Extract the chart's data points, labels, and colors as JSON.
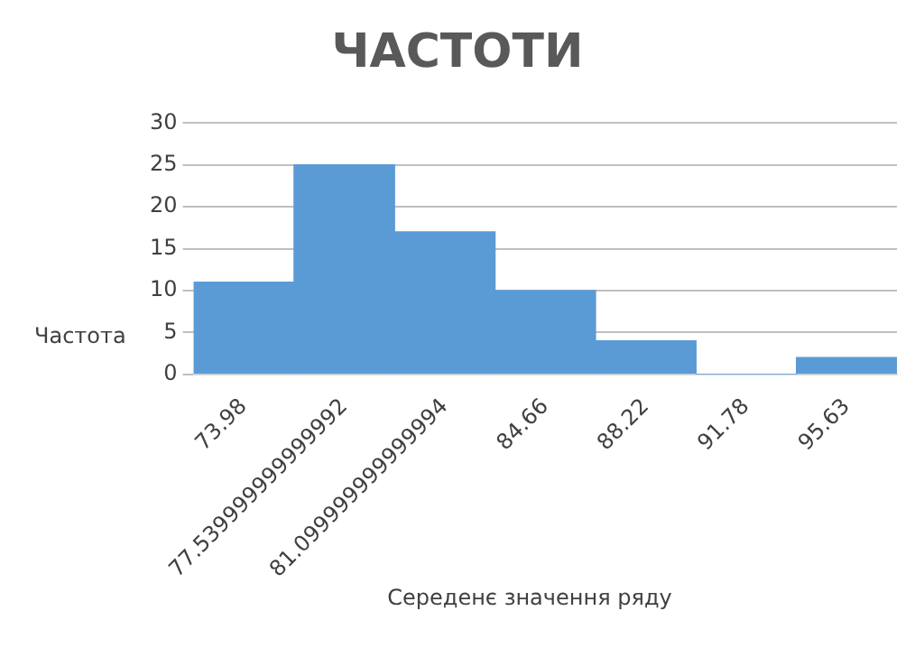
{
  "chart_data": {
    "type": "bar",
    "title": "ЧАСТОТИ",
    "xlabel": "Середенє значення ряду",
    "ylabel": "Частота",
    "categories": [
      "73.98",
      "77.539999999999992",
      "81.099999999999994",
      "84.66",
      "88.22",
      "91.78",
      "95.63"
    ],
    "values": [
      11,
      25,
      17,
      10,
      4,
      0,
      2
    ],
    "color": "#5b9bd5",
    "ylim": [
      0,
      30
    ],
    "yticks": [
      0,
      5,
      10,
      15,
      20,
      25,
      30
    ],
    "grid": "y",
    "legend": false
  }
}
